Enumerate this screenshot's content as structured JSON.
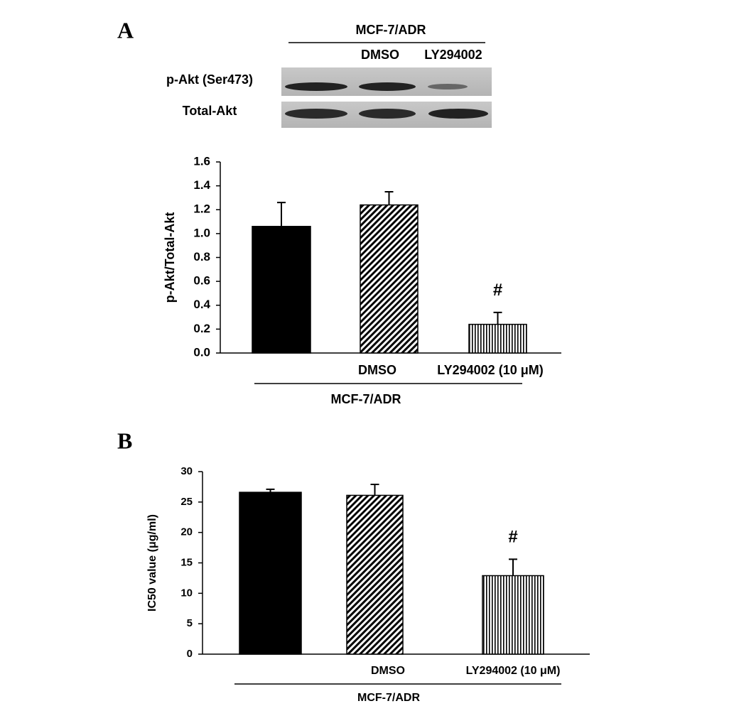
{
  "panel_labels": [
    "A",
    "B"
  ],
  "blot": {
    "group_label": "MCF-7/ADR",
    "lanes": [
      null,
      "DMSO",
      "LY294002"
    ],
    "rows": [
      "p-Akt (Ser473)",
      "Total-Akt"
    ]
  },
  "chart_data": [
    {
      "type": "bar",
      "y_label": "p-Akt/Total-Akt",
      "categories": [
        null,
        "DMSO",
        "LY294002 (10 μM)"
      ],
      "group_label": "MCF-7/ADR",
      "values": [
        1.06,
        1.24,
        0.24
      ],
      "errors": [
        0.2,
        0.11,
        0.1
      ],
      "value_annotations": [
        null,
        null,
        "#"
      ],
      "patterns": [
        "solid",
        "diagonal",
        "vertical"
      ],
      "color": "#000000",
      "ylim": [
        0,
        1.6
      ],
      "yticks": [
        {
          "value": 0,
          "label": "0.0"
        },
        0.2,
        0.4,
        0.6,
        0.8,
        {
          "value": 1,
          "label": "1.0"
        },
        1.2,
        1.4,
        1.6
      ]
    },
    {
      "type": "bar",
      "y_label": "IC50 value (μg/ml)",
      "categories": [
        null,
        "DMSO",
        "LY294002 (10 μM)"
      ],
      "group_label": "MCF-7/ADR",
      "values": [
        26.6,
        26.1,
        12.9
      ],
      "errors": [
        0.5,
        1.8,
        2.7
      ],
      "value_annotations": [
        null,
        null,
        "#"
      ],
      "patterns": [
        "solid",
        "diagonal",
        "vertical"
      ],
      "color": "#000000",
      "ylim": [
        0,
        30
      ],
      "yticks": [
        0,
        5,
        10,
        15,
        20,
        25,
        30
      ]
    }
  ]
}
